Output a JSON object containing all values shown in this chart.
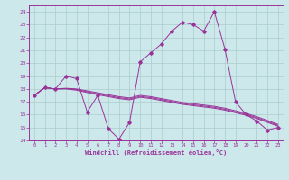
{
  "xlabel": "Windchill (Refroidissement éolien,°C)",
  "background_color": "#cce8ea",
  "grid_color": "#aacccc",
  "line_color": "#993399",
  "xlim": [
    -0.5,
    23.5
  ],
  "ylim": [
    14,
    24.5
  ],
  "yticks": [
    14,
    15,
    16,
    17,
    18,
    19,
    20,
    21,
    22,
    23,
    24
  ],
  "xticks": [
    0,
    1,
    2,
    3,
    4,
    5,
    6,
    7,
    8,
    9,
    10,
    11,
    12,
    13,
    14,
    15,
    16,
    17,
    18,
    19,
    20,
    21,
    22,
    23
  ],
  "x": [
    0,
    1,
    2,
    3,
    4,
    5,
    6,
    7,
    8,
    9,
    10,
    11,
    12,
    13,
    14,
    15,
    16,
    17,
    18,
    19,
    20,
    21,
    22,
    23
  ],
  "y_main": [
    17.5,
    18.1,
    18.0,
    19.0,
    18.8,
    16.2,
    17.5,
    14.9,
    14.1,
    15.4,
    20.1,
    20.8,
    21.5,
    22.5,
    23.2,
    23.0,
    22.5,
    24.0,
    21.1,
    17.0,
    16.0,
    15.5,
    14.8,
    15.0
  ],
  "y_line2": [
    17.5,
    18.1,
    18.0,
    18.05,
    18.0,
    17.85,
    17.7,
    17.55,
    17.4,
    17.3,
    17.5,
    17.4,
    17.25,
    17.1,
    16.95,
    16.85,
    16.75,
    16.65,
    16.5,
    16.3,
    16.1,
    15.85,
    15.55,
    15.25
  ],
  "y_line3": [
    17.5,
    18.1,
    18.0,
    18.0,
    17.9,
    17.72,
    17.55,
    17.4,
    17.25,
    17.15,
    17.35,
    17.25,
    17.1,
    16.95,
    16.8,
    16.7,
    16.6,
    16.5,
    16.35,
    16.15,
    15.95,
    15.7,
    15.4,
    15.1
  ],
  "y_line4": [
    17.5,
    18.1,
    18.0,
    18.02,
    17.95,
    17.78,
    17.62,
    17.47,
    17.32,
    17.22,
    17.42,
    17.32,
    17.17,
    17.02,
    16.87,
    16.77,
    16.67,
    16.57,
    16.42,
    16.22,
    16.02,
    15.77,
    15.47,
    15.17
  ]
}
